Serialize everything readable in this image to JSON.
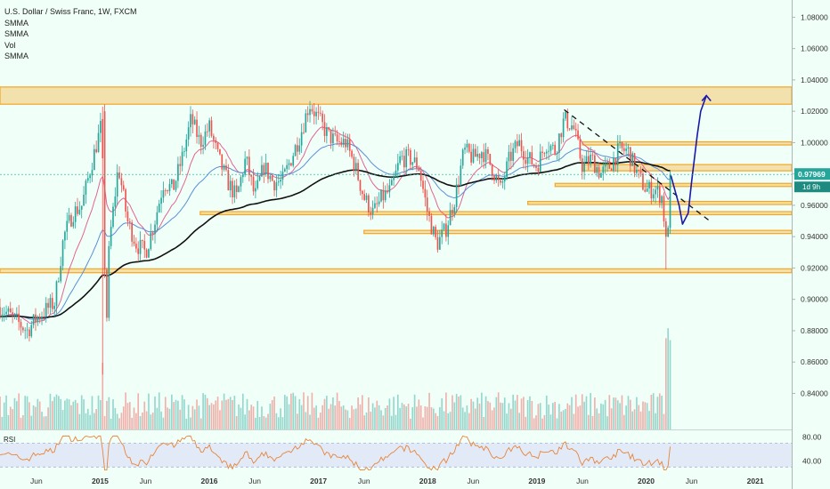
{
  "header": {
    "title": "U.S. Dollar / Swiss Franc, 1W, FXCM",
    "indicators": [
      "SMMA",
      "SMMA",
      "Vol",
      "SMMA"
    ]
  },
  "price_badge": {
    "value": "0.97969",
    "countdown": "1d 9h"
  },
  "rsi": {
    "label": "RSI"
  },
  "colors": {
    "background": "#f0fff8",
    "up": "#26a69a",
    "down": "#ef5350",
    "zone": "#f5a623",
    "forecast": "#1a1aa8",
    "price_badge": "#26a69a",
    "rsi_line": "#e8843a",
    "rsi_band": "#d9dcf7"
  },
  "chart_data": {
    "type": "candlestick",
    "symbol": "USDCHF",
    "timeframe": "1W",
    "y_range": [
      0.817,
      1.091
    ],
    "y_ticks": [
      "1.08000",
      "1.06000",
      "1.04000",
      "1.02000",
      "1.00000",
      "0.98000",
      "0.96000",
      "0.94000",
      "0.92000",
      "0.90000",
      "0.88000",
      "0.86000",
      "0.84000"
    ],
    "x_labels": [
      {
        "label": "Jun",
        "date": "2014-06"
      },
      {
        "label": "2015",
        "date": "2015-01"
      },
      {
        "label": "Jun",
        "date": "2015-06"
      },
      {
        "label": "2016",
        "date": "2016-01"
      },
      {
        "label": "Jun",
        "date": "2016-06"
      },
      {
        "label": "2017",
        "date": "2017-01"
      },
      {
        "label": "Jun",
        "date": "2017-06"
      },
      {
        "label": "2018",
        "date": "2018-01"
      },
      {
        "label": "Jun",
        "date": "2018-06"
      },
      {
        "label": "2019",
        "date": "2019-01"
      },
      {
        "label": "Jun",
        "date": "2019-06"
      },
      {
        "label": "2020",
        "date": "2020-01"
      },
      {
        "label": "Jun",
        "date": "2020-06"
      },
      {
        "label": "2021",
        "date": "2021-01"
      }
    ],
    "x_range": [
      "2014-02",
      "2021-05"
    ],
    "last_price": 0.97969,
    "price_path": [
      [
        "2014-02",
        0.895
      ],
      [
        "2014-04",
        0.885
      ],
      [
        "2014-05",
        0.88
      ],
      [
        "2014-06",
        0.888
      ],
      [
        "2014-08",
        0.898
      ],
      [
        "2014-09",
        0.94
      ],
      [
        "2014-10",
        0.955
      ],
      [
        "2014-11",
        0.96
      ],
      [
        "2014-12",
        0.985
      ],
      [
        "2015-01-10",
        1.015
      ],
      [
        "2015-01-20",
        0.87
      ],
      [
        "2015-02",
        0.935
      ],
      [
        "2015-03",
        0.985
      ],
      [
        "2015-04",
        0.95
      ],
      [
        "2015-05",
        0.935
      ],
      [
        "2015-06",
        0.93
      ],
      [
        "2015-07",
        0.95
      ],
      [
        "2015-08",
        0.975
      ],
      [
        "2015-09",
        0.97
      ],
      [
        "2015-10",
        0.99
      ],
      [
        "2015-11",
        1.015
      ],
      [
        "2015-12",
        1.0
      ],
      [
        "2016-01",
        1.01
      ],
      [
        "2016-02",
        0.99
      ],
      [
        "2016-03",
        0.975
      ],
      [
        "2016-04",
        0.965
      ],
      [
        "2016-05",
        0.99
      ],
      [
        "2016-06",
        0.965
      ],
      [
        "2016-07",
        0.985
      ],
      [
        "2016-08",
        0.975
      ],
      [
        "2016-09",
        0.975
      ],
      [
        "2016-10",
        0.99
      ],
      [
        "2016-11",
        1.005
      ],
      [
        "2016-12",
        1.025
      ],
      [
        "2017-01",
        1.015
      ],
      [
        "2017-02",
        1.005
      ],
      [
        "2017-03",
        1.0
      ],
      [
        "2017-04",
        1.0
      ],
      [
        "2017-05",
        0.985
      ],
      [
        "2017-06",
        0.965
      ],
      [
        "2017-07",
        0.955
      ],
      [
        "2017-08",
        0.965
      ],
      [
        "2017-09",
        0.97
      ],
      [
        "2017-10",
        0.99
      ],
      [
        "2017-11",
        0.99
      ],
      [
        "2017-12",
        0.985
      ],
      [
        "2018-01",
        0.955
      ],
      [
        "2018-02",
        0.935
      ],
      [
        "2018-03",
        0.945
      ],
      [
        "2018-04",
        0.965
      ],
      [
        "2018-05",
        0.995
      ],
      [
        "2018-06",
        0.99
      ],
      [
        "2018-07",
        0.995
      ],
      [
        "2018-08",
        0.985
      ],
      [
        "2018-09",
        0.97
      ],
      [
        "2018-10",
        0.99
      ],
      [
        "2018-11",
        1.0
      ],
      [
        "2018-12",
        0.99
      ],
      [
        "2019-01",
        0.985
      ],
      [
        "2019-02",
        1.0
      ],
      [
        "2019-03",
        0.995
      ],
      [
        "2019-04",
        1.015
      ],
      [
        "2019-05",
        1.01
      ],
      [
        "2019-06",
        0.985
      ],
      [
        "2019-07",
        0.99
      ],
      [
        "2019-08",
        0.98
      ],
      [
        "2019-09",
        0.985
      ],
      [
        "2019-10",
        0.995
      ],
      [
        "2019-11",
        0.995
      ],
      [
        "2019-12",
        0.98
      ],
      [
        "2020-01",
        0.97
      ],
      [
        "2020-02",
        0.97
      ],
      [
        "2020-02-25",
        0.965
      ],
      [
        "2020-03-09",
        0.93
      ],
      [
        "2020-03-16",
        0.96
      ],
      [
        "2020-03-23",
        0.979
      ]
    ],
    "zones": [
      {
        "y1": 1.0245,
        "y2": 1.0355,
        "from": "2014-02",
        "to": "2021-05"
      },
      {
        "y1": 0.917,
        "y2": 0.9195,
        "from": "2014-02",
        "to": "2021-05"
      },
      {
        "y1": 0.954,
        "y2": 0.956,
        "from": "2015-12",
        "to": "2021-05"
      },
      {
        "y1": 0.942,
        "y2": 0.944,
        "from": "2017-06",
        "to": "2021-05"
      },
      {
        "y1": 0.9605,
        "y2": 0.9625,
        "from": "2018-12",
        "to": "2021-05"
      },
      {
        "y1": 0.9985,
        "y2": 1.0005,
        "from": "2019-06",
        "to": "2021-05"
      },
      {
        "y1": 0.982,
        "y2": 0.986,
        "from": "2019-06",
        "to": "2021-05"
      },
      {
        "y1": 0.972,
        "y2": 0.974,
        "from": "2019-03",
        "to": "2021-05"
      }
    ],
    "trendline": {
      "from": [
        "2019-04",
        1.021
      ],
      "to": [
        "2020-08",
        0.95
      ]
    },
    "forecast_path": [
      [
        "2020-03-23",
        0.979
      ],
      [
        "2020-04-20",
        0.96
      ],
      [
        "2020-05",
        0.948
      ],
      [
        "2020-05-20",
        0.955
      ],
      [
        "2020-06",
        0.975
      ],
      [
        "2020-06-20",
        1.005
      ],
      [
        "2020-07",
        1.02
      ],
      [
        "2020-07-20",
        1.03
      ]
    ],
    "rsi_range": [
      20,
      90
    ],
    "rsi_levels": [
      70,
      30
    ],
    "rsi_ticks": [
      "80.00",
      "40.00"
    ],
    "volume_note": "volume bars at bottom, spike in Jan 2015 and Mar 2020"
  }
}
